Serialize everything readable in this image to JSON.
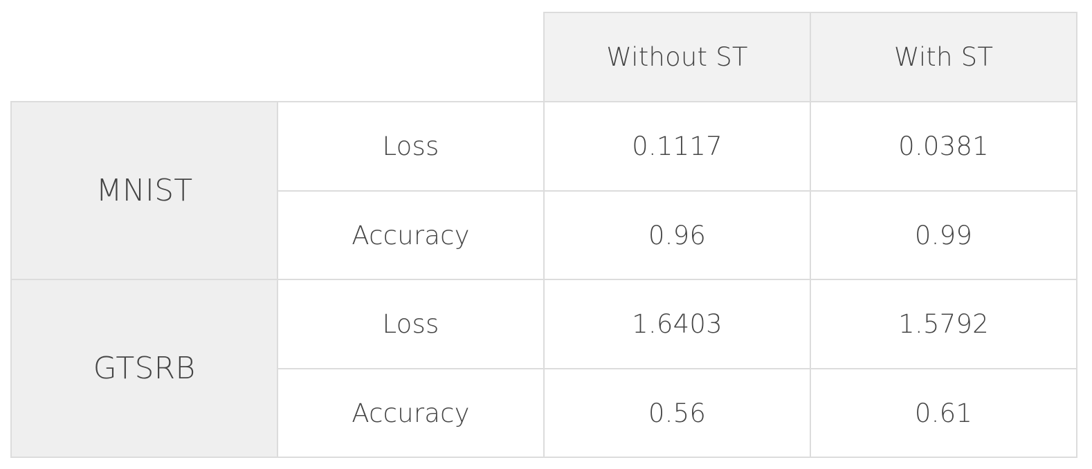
{
  "table": {
    "columns": [
      "Without ST",
      "With ST"
    ],
    "groups": [
      {
        "name": "MNIST",
        "rows": [
          {
            "metric": "Loss",
            "values": [
              "0.1117",
              "0.0381"
            ]
          },
          {
            "metric": "Accuracy",
            "values": [
              "0.96",
              "0.99"
            ]
          }
        ]
      },
      {
        "name": "GTSRB",
        "rows": [
          {
            "metric": "Loss",
            "values": [
              "1.6403",
              "1.5792"
            ]
          },
          {
            "metric": "Accuracy",
            "values": [
              "0.56",
              "0.61"
            ]
          }
        ]
      }
    ]
  }
}
